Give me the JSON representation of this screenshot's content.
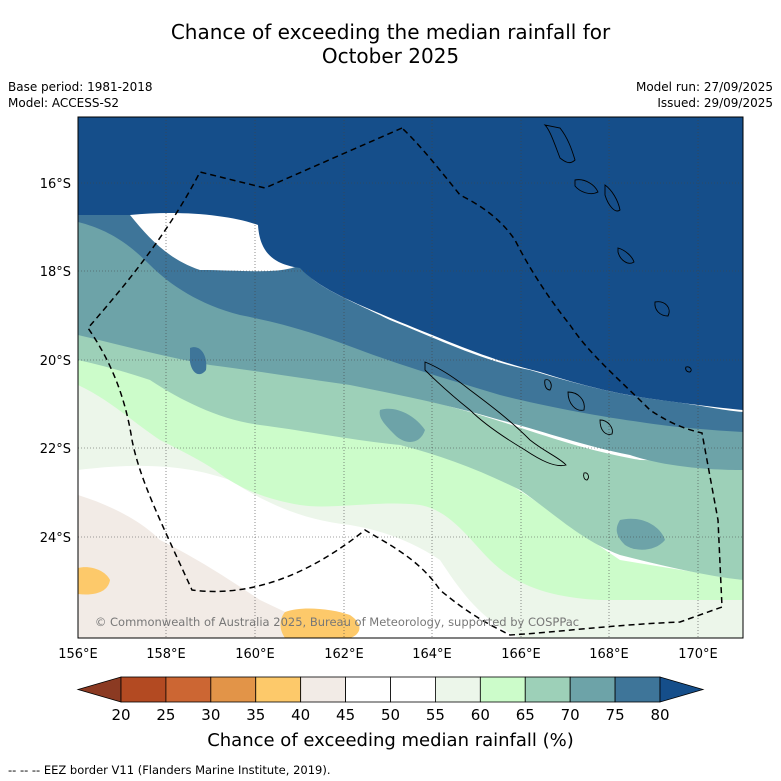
{
  "title": {
    "line1": "Chance of exceeding the median rainfall for",
    "line2": "October 2025"
  },
  "meta": {
    "base_period": "Base period: 1981-2018",
    "model": "Model: ACCESS-S2",
    "model_run": "Model run: 27/09/2025",
    "issued": "Issued: 29/09/2025"
  },
  "map": {
    "lat_labels": [
      "16°S",
      "18°S",
      "20°S",
      "22°S",
      "24°S"
    ],
    "lon_labels": [
      "156°E",
      "158°E",
      "160°E",
      "162°E",
      "164°E",
      "166°E",
      "168°E",
      "170°E"
    ],
    "copyright": "© Commonwealth of Australia 2025, Bureau of Meteorology, supported by COSPPac"
  },
  "colorbar": {
    "ticks": [
      "20",
      "25",
      "30",
      "35",
      "40",
      "45",
      "50",
      "55",
      "60",
      "65",
      "70",
      "75",
      "80"
    ],
    "colors": [
      "#b34a22",
      "#cc6633",
      "#e29448",
      "#fdc96a",
      "#f2ebe6",
      "#ffffff",
      "#ffffff",
      "#ecf6ea",
      "#ccfcca",
      "#9dd0b8",
      "#6da3a8",
      "#3e7599"
    ],
    "under_color": "#8b3a22",
    "over_color": "#154e8a",
    "label": "Chance of exceeding median rainfall (%)"
  },
  "legend": {
    "eez": "--  --  -- EEZ border V11 (Flanders Marine Institute, 2019)."
  }
}
